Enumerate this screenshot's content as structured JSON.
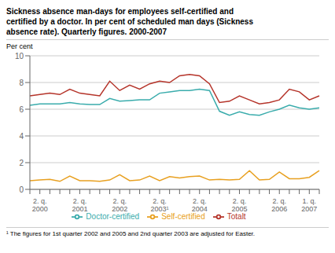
{
  "chart_data": {
    "type": "line",
    "title": "Sickness absence man-days for employees self-certified and\ncertified by a doctor. In per cent of scheduled man days (Sickness\nabsence rate). Quarterly figures. 2000-2007",
    "y_label": "Per cent",
    "footnote": "¹ The figures for 1st quarter 2002 and 2005 and 2nd quarter 2003 are adjusted for Easter.",
    "categories": [
      null,
      "2. q.\n2000",
      null,
      null,
      null,
      "2. q.\n2001",
      null,
      null,
      null,
      "2. q.\n2002",
      null,
      null,
      null,
      "2. q.\n2003¹",
      null,
      null,
      null,
      "2. q.\n2004",
      null,
      null,
      null,
      "2. q.\n2005",
      null,
      null,
      null,
      "2. q.\n2006",
      null,
      null,
      "1. q.\n2007",
      null
    ],
    "series": [
      {
        "name": "Totalt",
        "color": "#b5342a",
        "values": [
          7.0,
          7.1,
          7.2,
          7.1,
          7.5,
          7.2,
          7.1,
          7.0,
          8.1,
          7.4,
          7.8,
          7.5,
          7.9,
          8.1,
          8.0,
          8.5,
          8.6,
          8.5,
          7.9,
          6.5,
          6.6,
          7.0,
          6.7,
          6.4,
          6.5,
          6.7,
          7.5,
          7.3,
          6.7,
          7.0
        ]
      },
      {
        "name": "Self-certified",
        "color": "#e8a020",
        "values": [
          0.65,
          0.7,
          0.75,
          0.6,
          1.0,
          0.65,
          0.65,
          0.6,
          0.7,
          1.1,
          0.65,
          0.7,
          1.0,
          0.65,
          0.95,
          0.85,
          0.95,
          1.0,
          0.7,
          0.75,
          0.7,
          0.75,
          1.4,
          0.7,
          0.75,
          1.3,
          0.8,
          0.8,
          0.9,
          1.4
        ]
      },
      {
        "name": "Doctor-certified",
        "color": "#3aacac",
        "values": [
          6.3,
          6.4,
          6.4,
          6.4,
          6.5,
          6.4,
          6.35,
          6.35,
          6.8,
          6.6,
          6.65,
          6.7,
          6.7,
          7.2,
          7.3,
          7.4,
          7.4,
          7.5,
          7.4,
          5.85,
          5.55,
          5.8,
          5.6,
          5.55,
          5.8,
          6.0,
          6.3,
          6.1,
          6.0,
          6.1
        ]
      }
    ],
    "ylim": [
      0,
      10
    ],
    "yticks": [
      0,
      2,
      4,
      6,
      8,
      10
    ],
    "grid": true,
    "legend": "bottom"
  }
}
